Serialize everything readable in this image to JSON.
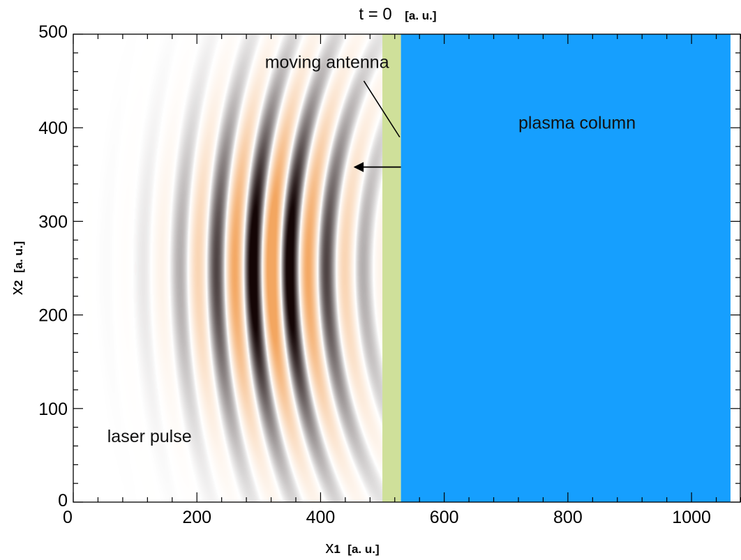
{
  "chart_data": {
    "type": "heatmap",
    "title": {
      "main": "t = 0",
      "unit": "[a. u.]"
    },
    "xlabel": {
      "symbol": "x",
      "subscript": "1",
      "unit": "[a. u.]"
    },
    "ylabel": {
      "symbol": "x",
      "subscript": "2",
      "unit": "[a. u.]"
    },
    "xlim": [
      0,
      1080
    ],
    "ylim": [
      0,
      500
    ],
    "x_major_ticks": [
      0,
      200,
      400,
      600,
      800,
      1000
    ],
    "x_tick_labels": [
      "0",
      "200",
      "400",
      "600",
      "800",
      "1000"
    ],
    "y_major_ticks": [
      0,
      100,
      200,
      300,
      400,
      500
    ],
    "y_tick_labels": [
      "0",
      "100",
      "200",
      "300",
      "400",
      "500"
    ],
    "x_minor_step": 40,
    "y_minor_step": 20,
    "regions": [
      {
        "name": "moving antenna",
        "x_start": 500,
        "x_end": 530,
        "color": "#cfe09a"
      },
      {
        "name": "plasma column",
        "x_start": 530,
        "x_end": 1063,
        "color": "#169ffe"
      }
    ],
    "laser_pulse": {
      "center_x": 320,
      "center_y": 250,
      "focus_x": 800,
      "wavelength": 60,
      "leading_edge_x": 520,
      "positive_color": "#f3a660",
      "negative_color": "#140505"
    },
    "annotations": [
      {
        "text": "moving antenna",
        "x": 310,
        "y": 470,
        "arrow_from": [
          528,
          390
        ],
        "arrow_to": [
          470,
          450
        ]
      },
      {
        "text": "plasma column",
        "x": 720,
        "y": 405
      },
      {
        "text": "laser pulse",
        "x": 55,
        "y": 70
      },
      {
        "arrow_from": [
          530,
          358
        ],
        "arrow_to": [
          455,
          358
        ]
      }
    ]
  }
}
